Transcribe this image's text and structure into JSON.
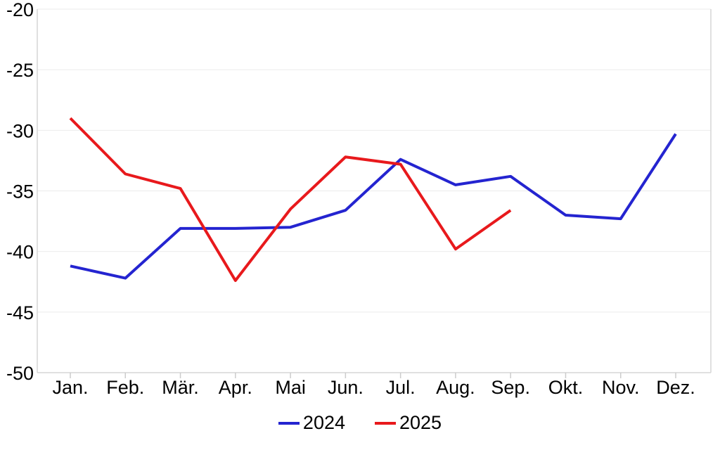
{
  "chart_data": {
    "type": "line",
    "title": "",
    "categories": [
      "Jan.",
      "Feb.",
      "Mär.",
      "Apr.",
      "Mai",
      "Jun.",
      "Jul.",
      "Aug.",
      "Sep.",
      "Okt.",
      "Nov.",
      "Dez."
    ],
    "series": [
      {
        "name": "2024",
        "color": "#2424d0",
        "values": [
          -41.2,
          -42.2,
          -38.1,
          -38.1,
          -38.0,
          -36.6,
          -32.4,
          -34.5,
          -33.8,
          -37.0,
          -37.3,
          -30.3
        ]
      },
      {
        "name": "2025",
        "color": "#e8191c",
        "values": [
          -29.0,
          -33.6,
          -34.8,
          -42.4,
          -36.5,
          -32.2,
          -32.8,
          -39.8,
          -36.6
        ]
      }
    ],
    "y_ticks": [
      -20,
      -25,
      -30,
      -35,
      -40,
      -45,
      -50
    ],
    "ylim": [
      -50,
      -20
    ],
    "xlabel": "",
    "ylabel": "",
    "grid": "horizontal",
    "legend_position": "bottom",
    "line_width": 4
  }
}
